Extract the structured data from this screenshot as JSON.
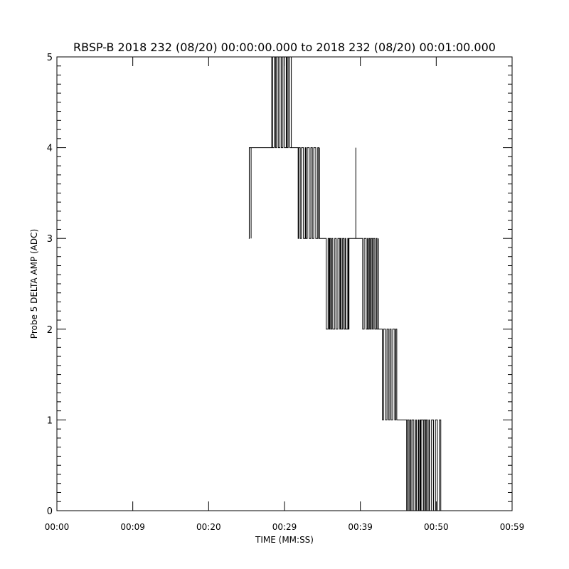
{
  "chart_data": {
    "type": "line",
    "title": "RBSP-B 2018 232 (08/20) 00:00:00.000 to 2018 232 (08/20) 00:01:00.000",
    "xlabel": "TIME (MM:SS)",
    "ylabel": "Probe 5 DELTA AMP (ADC)",
    "xlim_seconds": [
      0,
      60
    ],
    "ylim": [
      0,
      5
    ],
    "x_tick_labels": [
      "00:00",
      "00:09",
      "00:20",
      "00:29",
      "00:39",
      "00:50",
      "00:59"
    ],
    "y_tick_labels": [
      "0",
      "1",
      "2",
      "3",
      "4",
      "5"
    ],
    "y_minor_step": 0.1,
    "grid": false,
    "line_color": "#000000",
    "segments_note_units": "seconds",
    "segments": [
      {
        "t_start": 25.3,
        "t_end": 25.6,
        "low": 3,
        "high": 4
      },
      {
        "t_start": 25.6,
        "t_end": 28.2,
        "level": 4
      },
      {
        "t_start": 28.2,
        "t_end": 30.9,
        "low": 4,
        "high": 5
      },
      {
        "t_start": 30.9,
        "t_end": 31.8,
        "level": 4
      },
      {
        "t_start": 31.8,
        "t_end": 34.6,
        "low": 3,
        "high": 4
      },
      {
        "t_start": 34.6,
        "t_end": 35.5,
        "level": 3
      },
      {
        "t_start": 35.5,
        "t_end": 38.5,
        "low": 2,
        "high": 3
      },
      {
        "t_start": 38.5,
        "t_end": 39.3,
        "level": 3
      },
      {
        "t_start": 39.3,
        "t_end": 39.4,
        "low": 3,
        "high": 4
      },
      {
        "t_start": 39.4,
        "t_end": 40.3,
        "level": 3
      },
      {
        "t_start": 40.3,
        "t_end": 42.4,
        "low": 2,
        "high": 3
      },
      {
        "t_start": 42.4,
        "t_end": 42.9,
        "level": 2
      },
      {
        "t_start": 42.9,
        "t_end": 44.8,
        "low": 1,
        "high": 2
      },
      {
        "t_start": 44.8,
        "t_end": 46.1,
        "level": 1
      },
      {
        "t_start": 46.1,
        "t_end": 50.6,
        "low": 0,
        "high": 1
      }
    ]
  }
}
